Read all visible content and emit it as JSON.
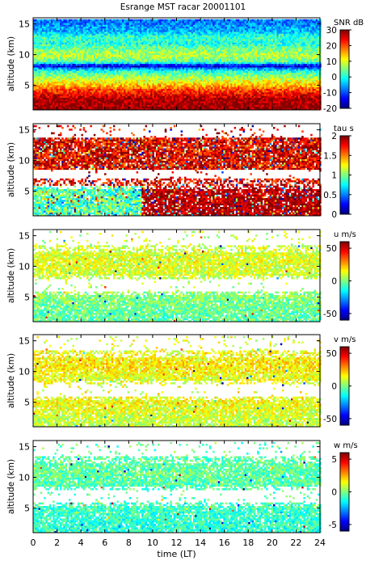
{
  "title": "Esrange MST racar 20001101",
  "xlabel": "time (LT)",
  "x_ticks": [
    0,
    2,
    4,
    6,
    8,
    10,
    12,
    14,
    16,
    18,
    20,
    22,
    24
  ],
  "chart_data": [
    {
      "type": "heatmap",
      "ylabel": "altitude (km)",
      "xlim": [
        0,
        24
      ],
      "ylim": [
        1,
        16
      ],
      "y_ticks": [
        5,
        10,
        15
      ],
      "colorbar": {
        "label": "SNR dB",
        "range": [
          -20,
          30
        ],
        "ticks": [
          30,
          20,
          10,
          0,
          -10,
          -20
        ]
      },
      "profile": [
        {
          "alt": 15.5,
          "value": -8
        },
        {
          "alt": 14.0,
          "value": -5
        },
        {
          "alt": 13.0,
          "value": 2
        },
        {
          "alt": 12.0,
          "value": 0
        },
        {
          "alt": 11.0,
          "value": 5
        },
        {
          "alt": 10.0,
          "value": 8
        },
        {
          "alt": 9.0,
          "value": 3
        },
        {
          "alt": 8.3,
          "value": -12
        },
        {
          "alt": 7.5,
          "value": 0
        },
        {
          "alt": 6.5,
          "value": 7
        },
        {
          "alt": 5.5,
          "value": 12
        },
        {
          "alt": 4.5,
          "value": 20
        },
        {
          "alt": 3.0,
          "value": 28
        },
        {
          "alt": 1.5,
          "value": 29
        }
      ]
    },
    {
      "type": "heatmap",
      "ylabel": "altitude (km)",
      "xlim": [
        0,
        24
      ],
      "ylim": [
        1,
        16
      ],
      "y_ticks": [
        5,
        10,
        15
      ],
      "colorbar": {
        "label": "tau s",
        "range": [
          0,
          2
        ],
        "ticks": [
          2,
          1.5,
          1,
          0.5,
          0
        ]
      },
      "profile": [
        {
          "alt": 14.0,
          "value": 1.8
        },
        {
          "alt": 12.0,
          "value": 1.85
        },
        {
          "alt": 10.0,
          "value": 1.8
        },
        {
          "alt": 5.0,
          "value": 1.1
        },
        {
          "alt": 3.0,
          "value": 1.2
        }
      ]
    },
    {
      "type": "heatmap",
      "ylabel": "altitude (km)",
      "xlim": [
        0,
        24
      ],
      "ylim": [
        1,
        16
      ],
      "y_ticks": [
        5,
        10,
        15
      ],
      "colorbar": {
        "label": "u m/s",
        "range": [
          -60,
          60
        ],
        "ticks": [
          50,
          0,
          -50
        ]
      },
      "profile": [
        {
          "alt": 14.0,
          "value": 8
        },
        {
          "alt": 11.0,
          "value": 12
        },
        {
          "alt": 9.0,
          "value": 10
        },
        {
          "alt": 5.0,
          "value": 0
        },
        {
          "alt": 2.0,
          "value": -4
        }
      ]
    },
    {
      "type": "heatmap",
      "ylabel": "altitude (km)",
      "xlim": [
        0,
        24
      ],
      "ylim": [
        1,
        16
      ],
      "y_ticks": [
        5,
        10,
        15
      ],
      "colorbar": {
        "label": "v m/s",
        "range": [
          -60,
          60
        ],
        "ticks": [
          50,
          0,
          -50
        ]
      },
      "profile": [
        {
          "alt": 14.0,
          "value": 12
        },
        {
          "alt": 11.0,
          "value": 18
        },
        {
          "alt": 9.0,
          "value": 12
        },
        {
          "alt": 5.0,
          "value": 14
        },
        {
          "alt": 2.0,
          "value": 8
        }
      ]
    },
    {
      "type": "heatmap",
      "ylabel": "altitude (km)",
      "xlim": [
        0,
        24
      ],
      "ylim": [
        1,
        16
      ],
      "y_ticks": [
        5,
        10,
        15
      ],
      "colorbar": {
        "label": "w m/s",
        "range": [
          -6,
          6
        ],
        "ticks": [
          5,
          0,
          -5
        ]
      },
      "profile": [
        {
          "alt": 14.0,
          "value": -0.5
        },
        {
          "alt": 11.0,
          "value": -0.3
        },
        {
          "alt": 9.0,
          "value": -0.5
        },
        {
          "alt": 5.0,
          "value": -0.8
        },
        {
          "alt": 2.0,
          "value": -1.0
        }
      ]
    }
  ]
}
